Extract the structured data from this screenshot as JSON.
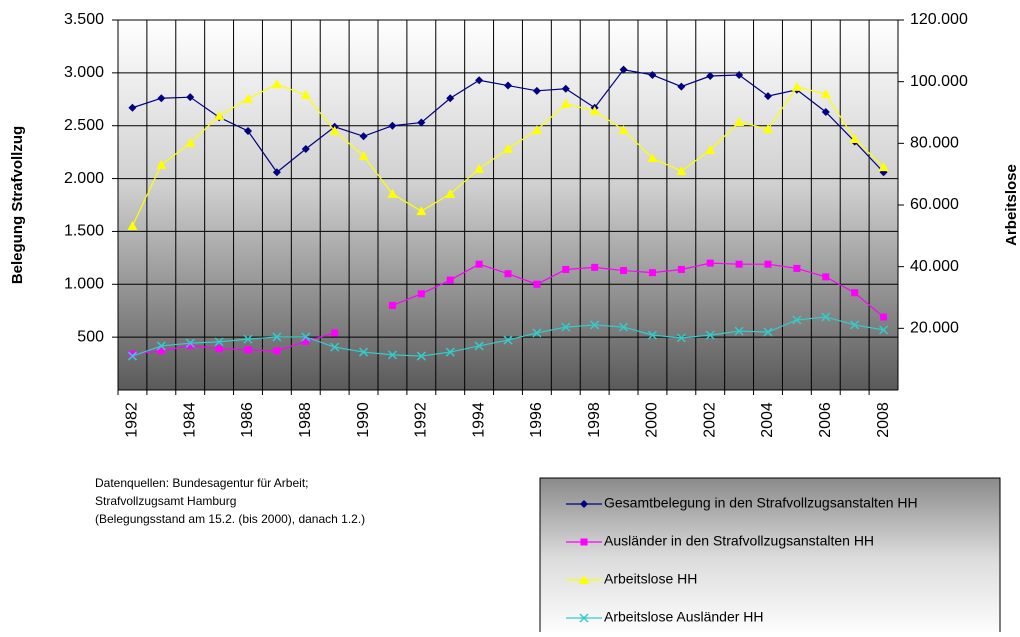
{
  "chart_data": {
    "type": "line",
    "categories": [
      "1982",
      null,
      "1984",
      null,
      "1986",
      null,
      "1988",
      null,
      "1990",
      null,
      "1992",
      null,
      "1994",
      null,
      "1996",
      null,
      "1998",
      null,
      "2000",
      null,
      "2002",
      null,
      "2004",
      null,
      "2006",
      null,
      "2008"
    ],
    "ylabel": "Belegung Strafvollzug",
    "y2label": "Arbeitslose",
    "ylim": [
      0,
      3500
    ],
    "yticks": [
      500,
      {
        "value": 1000,
        "label": "1.000"
      },
      {
        "value": 1500,
        "label": "1.500"
      },
      {
        "value": 2000,
        "label": "2.000"
      },
      {
        "value": 2500,
        "label": "2.500"
      },
      {
        "value": 3000,
        "label": "3.000"
      },
      {
        "value": 3500,
        "label": "3.500"
      }
    ],
    "y2lim": [
      0,
      120000
    ],
    "y2ticks": [
      {
        "value": 20000,
        "label": "20.000"
      },
      {
        "value": 40000,
        "label": "40.000"
      },
      {
        "value": 60000,
        "label": "60.000"
      },
      {
        "value": 80000,
        "label": "80.000"
      },
      {
        "value": 100000,
        "label": "100.000"
      },
      {
        "value": 120000,
        "label": "120.000"
      }
    ],
    "grid": true,
    "series": [
      {
        "name": "Gesamtbelegung in den Strafvollzugsanstalten HH",
        "color": "#000080",
        "marker": "diamond",
        "values": [
          2670,
          2760,
          2770,
          2580,
          2450,
          2060,
          2280,
          2490,
          2400,
          2500,
          2530,
          2760,
          2930,
          2880,
          2830,
          2850,
          2670,
          3030,
          2980,
          2870,
          2970,
          2980,
          2780,
          2840,
          2630,
          2350,
          2060
        ]
      },
      {
        "name": "Ausländer in den Strafvollzugsanstalten HH",
        "color": "#ff00ff",
        "marker": "square",
        "values": [
          340,
          370,
          420,
          390,
          380,
          370,
          460,
          540,
          null,
          800,
          910,
          1040,
          1190,
          1100,
          1000,
          1140,
          1160,
          1130,
          1110,
          1140,
          1200,
          1190,
          1190,
          1150,
          1070,
          920,
          690
        ]
      },
      {
        "name": "Arbeitslose HH",
        "color": "#ffff00",
        "marker": "triangle",
        "axis": "y2",
        "values": [
          53200,
          73000,
          80100,
          88900,
          94400,
          99200,
          95700,
          84000,
          75900,
          63600,
          58000,
          63600,
          71700,
          78200,
          84300,
          92800,
          90500,
          84300,
          75200,
          71000,
          77800,
          86900,
          84600,
          98300,
          96000,
          81400,
          72300
        ]
      },
      {
        "name": "Arbeitslose Ausländer HH",
        "color": "#33cccc",
        "marker": "x",
        "axis": "y2",
        "values": [
          11000,
          14300,
          15200,
          15600,
          16500,
          17200,
          17200,
          13900,
          12300,
          11400,
          11000,
          12300,
          14300,
          16200,
          18500,
          20400,
          21100,
          20400,
          17800,
          16900,
          17800,
          19100,
          18800,
          22700,
          23700,
          21100,
          19500
        ]
      }
    ],
    "notes": [
      "Datenquellen: Bundesagentur für Arbeit;",
      "Strafvollzugsamt Hamburg",
      "(Belegungsstand am 15.2. (bis 2000), danach 1.2.)"
    ]
  }
}
